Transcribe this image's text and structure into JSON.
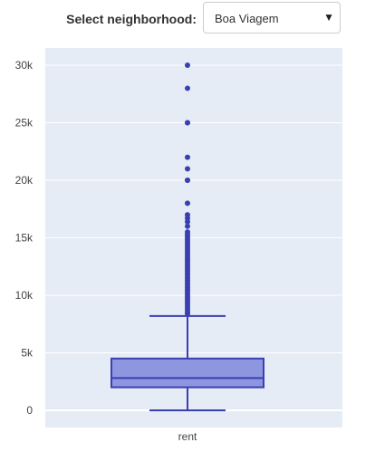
{
  "selector": {
    "label": "Select neighborhood:",
    "value": "Boa Viagem",
    "arrow_icon": "▼"
  },
  "colors": {
    "plot_bg": "#e5ecf6",
    "grid": "#ffffff",
    "box_fill": "#8f96e0",
    "box_line": "#3a3fb0",
    "outlier": "#3a3fb0",
    "tick_text": "#444444"
  },
  "chart_data": {
    "type": "box",
    "title": "",
    "xlabel": "",
    "ylabel": "",
    "categories": [
      "rent"
    ],
    "ylim": [
      -1500,
      31500
    ],
    "yticks": [
      0,
      5000,
      10000,
      15000,
      20000,
      25000,
      30000
    ],
    "ytick_labels": [
      "0",
      "5k",
      "10k",
      "15k",
      "20k",
      "25k",
      "30k"
    ],
    "grid": true,
    "box": {
      "min": 0,
      "q1": 2000,
      "median": 2800,
      "q3": 4500,
      "upper_fence": 8200
    },
    "outliers": [
      30000,
      28000,
      25000,
      25000,
      22000,
      21000,
      20000,
      20000,
      18000,
      17000,
      16700,
      16400,
      16000,
      15500,
      15300,
      15100,
      14900,
      14700,
      14500,
      14300,
      14100,
      13900,
      13700,
      13500,
      13300,
      13100,
      12900,
      12700,
      12500,
      12300,
      12100,
      11900,
      11700,
      11500,
      11300,
      11100,
      10900,
      10700,
      10500,
      10300,
      10100,
      9900,
      9700,
      9500,
      9300,
      9100,
      8900,
      8700,
      8500,
      8400
    ]
  }
}
